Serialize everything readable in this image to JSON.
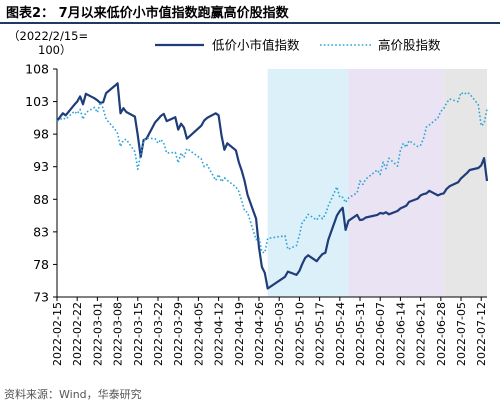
{
  "figure_title": "图表2：  7月以来低价小市值指数跑赢高价股指数",
  "source": "资料来源：Wind，华泰研究",
  "colors": {
    "low_price": "#1f3d7a",
    "high_price": "#29a3d6",
    "shade_blue": "#dcf0fa",
    "shade_purple": "#eae3f3",
    "shade_gray": "#e6e6e6",
    "axis": "#000000",
    "title_rule": "#1f3864"
  },
  "chart_data": {
    "type": "line",
    "ylabel_lines": [
      "（2022/2/15=",
      "100）"
    ],
    "ylim": [
      73,
      108
    ],
    "yticks": [
      73,
      78,
      83,
      88,
      93,
      98,
      103,
      108
    ],
    "xlim": [
      "2022-02-15",
      "2022-07-14"
    ],
    "xticks": [
      "2022-02-15",
      "2022-02-22",
      "2022-03-01",
      "2022-03-08",
      "2022-03-15",
      "2022-03-22",
      "2022-03-29",
      "2022-04-05",
      "2022-04-12",
      "2022-04-19",
      "2022-04-26",
      "2022-05-03",
      "2022-05-10",
      "2022-05-17",
      "2022-05-24",
      "2022-05-31",
      "2022-06-07",
      "2022-06-14",
      "2022-06-21",
      "2022-06-28",
      "2022-07-05",
      "2022-07-12"
    ],
    "legend_position": "top",
    "shaded_ranges": [
      {
        "start": "2022-04-29",
        "end": "2022-05-27",
        "color": "shade_blue"
      },
      {
        "start": "2022-05-27",
        "end": "2022-06-29",
        "color": "shade_purple"
      },
      {
        "start": "2022-06-29",
        "end": "2022-07-14",
        "color": "shade_gray"
      }
    ],
    "series": [
      {
        "name": "低价小市值指数",
        "style": "solid",
        "color_key": "low_price",
        "points": [
          [
            "2022-02-15",
            100.0
          ],
          [
            "2022-02-16",
            100.6
          ],
          [
            "2022-02-17",
            101.2
          ],
          [
            "2022-02-18",
            100.9
          ],
          [
            "2022-02-21",
            102.5
          ],
          [
            "2022-02-22",
            103.0
          ],
          [
            "2022-02-23",
            103.8
          ],
          [
            "2022-02-24",
            102.6
          ],
          [
            "2022-02-25",
            104.2
          ],
          [
            "2022-02-28",
            103.5
          ],
          [
            "2022-03-01",
            103.2
          ],
          [
            "2022-03-02",
            102.8
          ],
          [
            "2022-03-03",
            102.9
          ],
          [
            "2022-03-04",
            104.3
          ],
          [
            "2022-03-07",
            105.4
          ],
          [
            "2022-03-08",
            105.8
          ],
          [
            "2022-03-09",
            101.2
          ],
          [
            "2022-03-10",
            102.0
          ],
          [
            "2022-03-11",
            101.4
          ],
          [
            "2022-03-14",
            100.7
          ],
          [
            "2022-03-15",
            97.8
          ],
          [
            "2022-03-16",
            94.5
          ],
          [
            "2022-03-17",
            97.1
          ],
          [
            "2022-03-18",
            97.3
          ],
          [
            "2022-03-21",
            99.8
          ],
          [
            "2022-03-22",
            100.3
          ],
          [
            "2022-03-23",
            100.8
          ],
          [
            "2022-03-24",
            101.1
          ],
          [
            "2022-03-25",
            100.0
          ],
          [
            "2022-03-28",
            100.6
          ],
          [
            "2022-03-29",
            98.7
          ],
          [
            "2022-03-30",
            99.6
          ],
          [
            "2022-03-31",
            99.0
          ],
          [
            "2022-04-01",
            97.3
          ],
          [
            "2022-04-06",
            99.3
          ],
          [
            "2022-04-07",
            100.1
          ],
          [
            "2022-04-08",
            100.5
          ],
          [
            "2022-04-11",
            101.2
          ],
          [
            "2022-04-12",
            100.9
          ],
          [
            "2022-04-13",
            97.8
          ],
          [
            "2022-04-14",
            95.6
          ],
          [
            "2022-04-15",
            96.6
          ],
          [
            "2022-04-18",
            95.5
          ],
          [
            "2022-04-19",
            93.7
          ],
          [
            "2022-04-20",
            92.4
          ],
          [
            "2022-04-21",
            90.8
          ],
          [
            "2022-04-22",
            88.7
          ],
          [
            "2022-04-25",
            85.0
          ],
          [
            "2022-04-26",
            80.6
          ],
          [
            "2022-04-27",
            77.6
          ],
          [
            "2022-04-28",
            76.7
          ],
          [
            "2022-04-29",
            74.3
          ],
          [
            "2022-05-05",
            76.1
          ],
          [
            "2022-05-06",
            76.9
          ],
          [
            "2022-05-09",
            76.4
          ],
          [
            "2022-05-10",
            77.0
          ],
          [
            "2022-05-11",
            78.1
          ],
          [
            "2022-05-12",
            79.0
          ],
          [
            "2022-05-13",
            79.4
          ],
          [
            "2022-05-16",
            78.5
          ],
          [
            "2022-05-17",
            79.1
          ],
          [
            "2022-05-18",
            79.6
          ],
          [
            "2022-05-19",
            79.8
          ],
          [
            "2022-05-20",
            81.8
          ],
          [
            "2022-05-23",
            85.5
          ],
          [
            "2022-05-24",
            86.2
          ],
          [
            "2022-05-25",
            86.7
          ],
          [
            "2022-05-26",
            83.3
          ],
          [
            "2022-05-27",
            84.7
          ],
          [
            "2022-05-30",
            85.6
          ],
          [
            "2022-05-31",
            84.8
          ],
          [
            "2022-06-01",
            84.9
          ],
          [
            "2022-06-02",
            85.2
          ],
          [
            "2022-06-06",
            85.6
          ],
          [
            "2022-06-07",
            85.9
          ],
          [
            "2022-06-08",
            85.8
          ],
          [
            "2022-06-09",
            86.0
          ],
          [
            "2022-06-10",
            85.7
          ],
          [
            "2022-06-13",
            86.2
          ],
          [
            "2022-06-14",
            86.6
          ],
          [
            "2022-06-15",
            86.8
          ],
          [
            "2022-06-16",
            87.0
          ],
          [
            "2022-06-17",
            87.6
          ],
          [
            "2022-06-20",
            88.1
          ],
          [
            "2022-06-21",
            88.6
          ],
          [
            "2022-06-22",
            88.8
          ],
          [
            "2022-06-23",
            88.9
          ],
          [
            "2022-06-24",
            89.3
          ],
          [
            "2022-06-27",
            88.6
          ],
          [
            "2022-06-28",
            88.8
          ],
          [
            "2022-06-29",
            88.9
          ],
          [
            "2022-06-30",
            89.6
          ],
          [
            "2022-07-01",
            90.0
          ],
          [
            "2022-07-04",
            90.6
          ],
          [
            "2022-07-05",
            91.2
          ],
          [
            "2022-07-06",
            91.6
          ],
          [
            "2022-07-07",
            92.0
          ],
          [
            "2022-07-08",
            92.5
          ],
          [
            "2022-07-11",
            92.8
          ],
          [
            "2022-07-12",
            93.2
          ],
          [
            "2022-07-13",
            94.3
          ],
          [
            "2022-07-14",
            90.8
          ]
        ]
      },
      {
        "name": "高价股指数",
        "style": "dotted",
        "color_key": "high_price",
        "points": [
          [
            "2022-02-15",
            100.0
          ],
          [
            "2022-02-16",
            100.2
          ],
          [
            "2022-02-17",
            100.5
          ],
          [
            "2022-02-18",
            100.3
          ],
          [
            "2022-02-21",
            101.5
          ],
          [
            "2022-02-22",
            101.1
          ],
          [
            "2022-02-23",
            101.8
          ],
          [
            "2022-02-24",
            100.3
          ],
          [
            "2022-02-25",
            101.3
          ],
          [
            "2022-02-28",
            102.1
          ],
          [
            "2022-03-01",
            101.3
          ],
          [
            "2022-03-02",
            102.9
          ],
          [
            "2022-03-03",
            101.9
          ],
          [
            "2022-03-04",
            100.3
          ],
          [
            "2022-03-07",
            98.8
          ],
          [
            "2022-03-08",
            98.1
          ],
          [
            "2022-03-09",
            96.1
          ],
          [
            "2022-03-10",
            97.1
          ],
          [
            "2022-03-11",
            97.2
          ],
          [
            "2022-03-14",
            95.3
          ],
          [
            "2022-03-15",
            92.6
          ],
          [
            "2022-03-16",
            94.9
          ],
          [
            "2022-03-17",
            97.0
          ],
          [
            "2022-03-18",
            97.4
          ],
          [
            "2022-03-21",
            97.3
          ],
          [
            "2022-03-22",
            96.6
          ],
          [
            "2022-03-23",
            97.2
          ],
          [
            "2022-03-24",
            96.6
          ],
          [
            "2022-03-25",
            95.1
          ],
          [
            "2022-03-28",
            95.2
          ],
          [
            "2022-03-29",
            93.6
          ],
          [
            "2022-03-30",
            95.1
          ],
          [
            "2022-03-31",
            94.4
          ],
          [
            "2022-04-01",
            95.8
          ],
          [
            "2022-04-06",
            94.2
          ],
          [
            "2022-04-07",
            93.0
          ],
          [
            "2022-04-08",
            93.3
          ],
          [
            "2022-04-11",
            90.9
          ],
          [
            "2022-04-12",
            91.8
          ],
          [
            "2022-04-13",
            90.7
          ],
          [
            "2022-04-14",
            91.3
          ],
          [
            "2022-04-15",
            90.9
          ],
          [
            "2022-04-18",
            89.9
          ],
          [
            "2022-04-19",
            89.2
          ],
          [
            "2022-04-20",
            87.8
          ],
          [
            "2022-04-21",
            86.2
          ],
          [
            "2022-04-22",
            86.0
          ],
          [
            "2022-04-25",
            81.8
          ],
          [
            "2022-04-26",
            82.1
          ],
          [
            "2022-04-27",
            79.9
          ],
          [
            "2022-04-28",
            79.8
          ],
          [
            "2022-04-29",
            82.0
          ],
          [
            "2022-05-05",
            82.4
          ],
          [
            "2022-05-06",
            80.3
          ],
          [
            "2022-05-09",
            80.9
          ],
          [
            "2022-05-10",
            82.5
          ],
          [
            "2022-05-11",
            84.5
          ],
          [
            "2022-05-12",
            84.9
          ],
          [
            "2022-05-13",
            85.7
          ],
          [
            "2022-05-16",
            84.8
          ],
          [
            "2022-05-17",
            85.5
          ],
          [
            "2022-05-18",
            85.0
          ],
          [
            "2022-05-19",
            85.7
          ],
          [
            "2022-05-20",
            87.0
          ],
          [
            "2022-05-23",
            89.9
          ],
          [
            "2022-05-24",
            88.3
          ],
          [
            "2022-05-25",
            88.3
          ],
          [
            "2022-05-26",
            87.5
          ],
          [
            "2022-05-27",
            88.2
          ],
          [
            "2022-05-30",
            89.0
          ],
          [
            "2022-05-31",
            90.8
          ],
          [
            "2022-06-01",
            90.3
          ],
          [
            "2022-06-02",
            91.1
          ],
          [
            "2022-06-06",
            92.5
          ],
          [
            "2022-06-07",
            91.8
          ],
          [
            "2022-06-08",
            93.7
          ],
          [
            "2022-06-09",
            92.7
          ],
          [
            "2022-06-10",
            94.3
          ],
          [
            "2022-06-13",
            93.1
          ],
          [
            "2022-06-14",
            95.5
          ],
          [
            "2022-06-15",
            96.6
          ],
          [
            "2022-06-16",
            96.0
          ],
          [
            "2022-06-17",
            97.0
          ],
          [
            "2022-06-20",
            96.1
          ],
          [
            "2022-06-21",
            96.3
          ],
          [
            "2022-06-22",
            97.3
          ],
          [
            "2022-06-23",
            99.1
          ],
          [
            "2022-06-24",
            99.4
          ],
          [
            "2022-06-27",
            100.5
          ],
          [
            "2022-06-28",
            101.5
          ],
          [
            "2022-06-29",
            101.9
          ],
          [
            "2022-06-30",
            102.8
          ],
          [
            "2022-07-01",
            103.4
          ],
          [
            "2022-07-04",
            103.0
          ],
          [
            "2022-07-05",
            104.4
          ],
          [
            "2022-07-06",
            104.1
          ],
          [
            "2022-07-07",
            104.4
          ],
          [
            "2022-07-08",
            104.2
          ],
          [
            "2022-07-11",
            102.5
          ],
          [
            "2022-07-12",
            99.3
          ],
          [
            "2022-07-13",
            99.6
          ],
          [
            "2022-07-14",
            101.9
          ]
        ]
      }
    ]
  }
}
